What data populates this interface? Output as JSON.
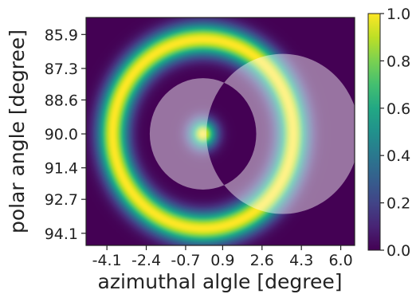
{
  "chart_data": {
    "type": "heatmap",
    "title": "",
    "xlabel": "azimuthal algle [degree]",
    "ylabel": "polar angle [degree]",
    "x_ticks": [
      "-4.1",
      "-2.4",
      "-0.7",
      "0.9",
      "2.6",
      "4.3",
      "6.0"
    ],
    "y_ticks": [
      "85.9",
      "87.3",
      "88.6",
      "90.0",
      "91.4",
      "92.7",
      "94.1"
    ],
    "xlim": [
      -5.0,
      6.6
    ],
    "ylim": [
      85.2,
      94.6
    ],
    "colormap": "viridis",
    "colorbar_ticks": [
      "0.0",
      "0.2",
      "0.4",
      "0.6",
      "0.8",
      "1.0"
    ],
    "colorbar_range": [
      0.0,
      1.0
    ],
    "intensity_pattern": {
      "description_center": [
        0.05,
        90.0
      ],
      "central_peak_sigma": 0.4,
      "ring_radius": 3.9,
      "ring_width_sigma": 0.45,
      "ring_peak_value": 1.0
    },
    "overlay": {
      "shape": "crescent",
      "color": "#ffffff",
      "opacity": 0.45,
      "outer_center": [
        3.5,
        90.0
      ],
      "outer_radius": 3.3,
      "inner_center": [
        0.05,
        90.0
      ],
      "inner_radius": 2.3
    }
  }
}
